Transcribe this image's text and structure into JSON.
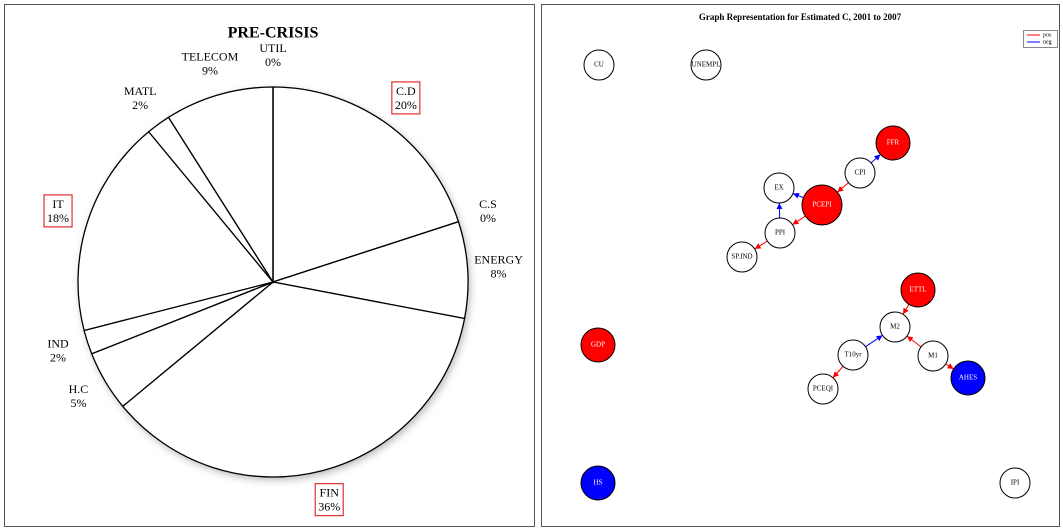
{
  "chart_data": [
    {
      "type": "pie",
      "title": "PRE-CRISIS",
      "categories": [
        "C.D",
        "C.S",
        "ENERGY",
        "FIN",
        "H.C",
        "IND",
        "IT",
        "MATL",
        "TELECOM",
        "UTIL"
      ],
      "values": [
        20,
        0,
        8,
        36,
        5,
        2,
        18,
        2,
        9,
        0
      ],
      "value_labels": [
        "20%",
        "0%",
        "8%",
        "36%",
        "5%",
        "2%",
        "18%",
        "2%",
        "9%",
        "0%"
      ],
      "highlighted": [
        true,
        false,
        false,
        true,
        false,
        false,
        true,
        false,
        false,
        false
      ],
      "color": "#ffffff",
      "highlight_color": "#e03030"
    }
  ],
  "graph": {
    "title": "Graph Representation for Estimated C, 2001 to 2007",
    "legend": [
      {
        "name": "pos",
        "color": "#ff0000"
      },
      {
        "name": "neg",
        "color": "#0000ff"
      }
    ],
    "nodes": [
      {
        "label": "CU",
        "fill": "#ffffff"
      },
      {
        "label": "UNEMPL",
        "fill": "#ffffff"
      },
      {
        "label": "FFR",
        "fill": "#ff0000"
      },
      {
        "label": "CPI",
        "fill": "#ffffff"
      },
      {
        "label": "EX",
        "fill": "#ffffff"
      },
      {
        "label": "PCEPI",
        "fill": "#ff0000"
      },
      {
        "label": "PPI",
        "fill": "#ffffff"
      },
      {
        "label": "SP.IND",
        "fill": "#ffffff"
      },
      {
        "label": "ETTL",
        "fill": "#ff0000"
      },
      {
        "label": "M2",
        "fill": "#ffffff"
      },
      {
        "label": "GDP",
        "fill": "#ff0000"
      },
      {
        "label": "T10yr",
        "fill": "#ffffff"
      },
      {
        "label": "M1",
        "fill": "#ffffff"
      },
      {
        "label": "AHES",
        "fill": "#0000ff"
      },
      {
        "label": "PCEQI",
        "fill": "#ffffff"
      },
      {
        "label": "HS",
        "fill": "#0000ff"
      },
      {
        "label": "IPI",
        "fill": "#ffffff"
      }
    ],
    "edges": [
      {
        "from": 3,
        "to": 2,
        "kind": 1
      },
      {
        "from": 3,
        "to": 5,
        "kind": 0
      },
      {
        "from": 5,
        "to": 4,
        "kind": 1
      },
      {
        "from": 6,
        "to": 4,
        "kind": 1
      },
      {
        "from": 5,
        "to": 6,
        "kind": 0
      },
      {
        "from": 6,
        "to": 7,
        "kind": 0
      },
      {
        "from": 8,
        "to": 9,
        "kind": 0
      },
      {
        "from": 12,
        "to": 9,
        "kind": 0
      },
      {
        "from": 12,
        "to": 13,
        "kind": 0
      },
      {
        "from": 11,
        "to": 9,
        "kind": 1
      },
      {
        "from": 11,
        "to": 14,
        "kind": 0
      }
    ]
  }
}
